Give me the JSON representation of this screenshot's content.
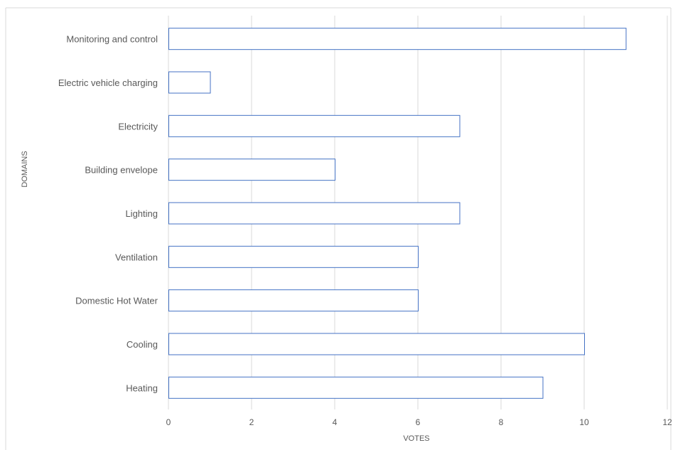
{
  "chart_data": {
    "type": "bar",
    "orientation": "horizontal",
    "categories": [
      "Monitoring and control",
      "Electric vehicle charging",
      "Electricity",
      "Building envelope",
      "Lighting",
      "Ventilation",
      "Domestic Hot Water",
      "Cooling",
      "Heating"
    ],
    "values": [
      11,
      1,
      7,
      4,
      7,
      6,
      6,
      10,
      9
    ],
    "xlabel": "VOTES",
    "ylabel": "DOMAINS",
    "xlim": [
      0,
      12
    ],
    "xticks": [
      "0",
      "2",
      "4",
      "6",
      "8",
      "10",
      "12"
    ],
    "grid": "vertical",
    "legend": "none",
    "colors": {
      "bar_fill": "#ffffff",
      "bar_stroke": "#4472c4",
      "grid": "#d9d9d9",
      "text": "#595959"
    }
  }
}
